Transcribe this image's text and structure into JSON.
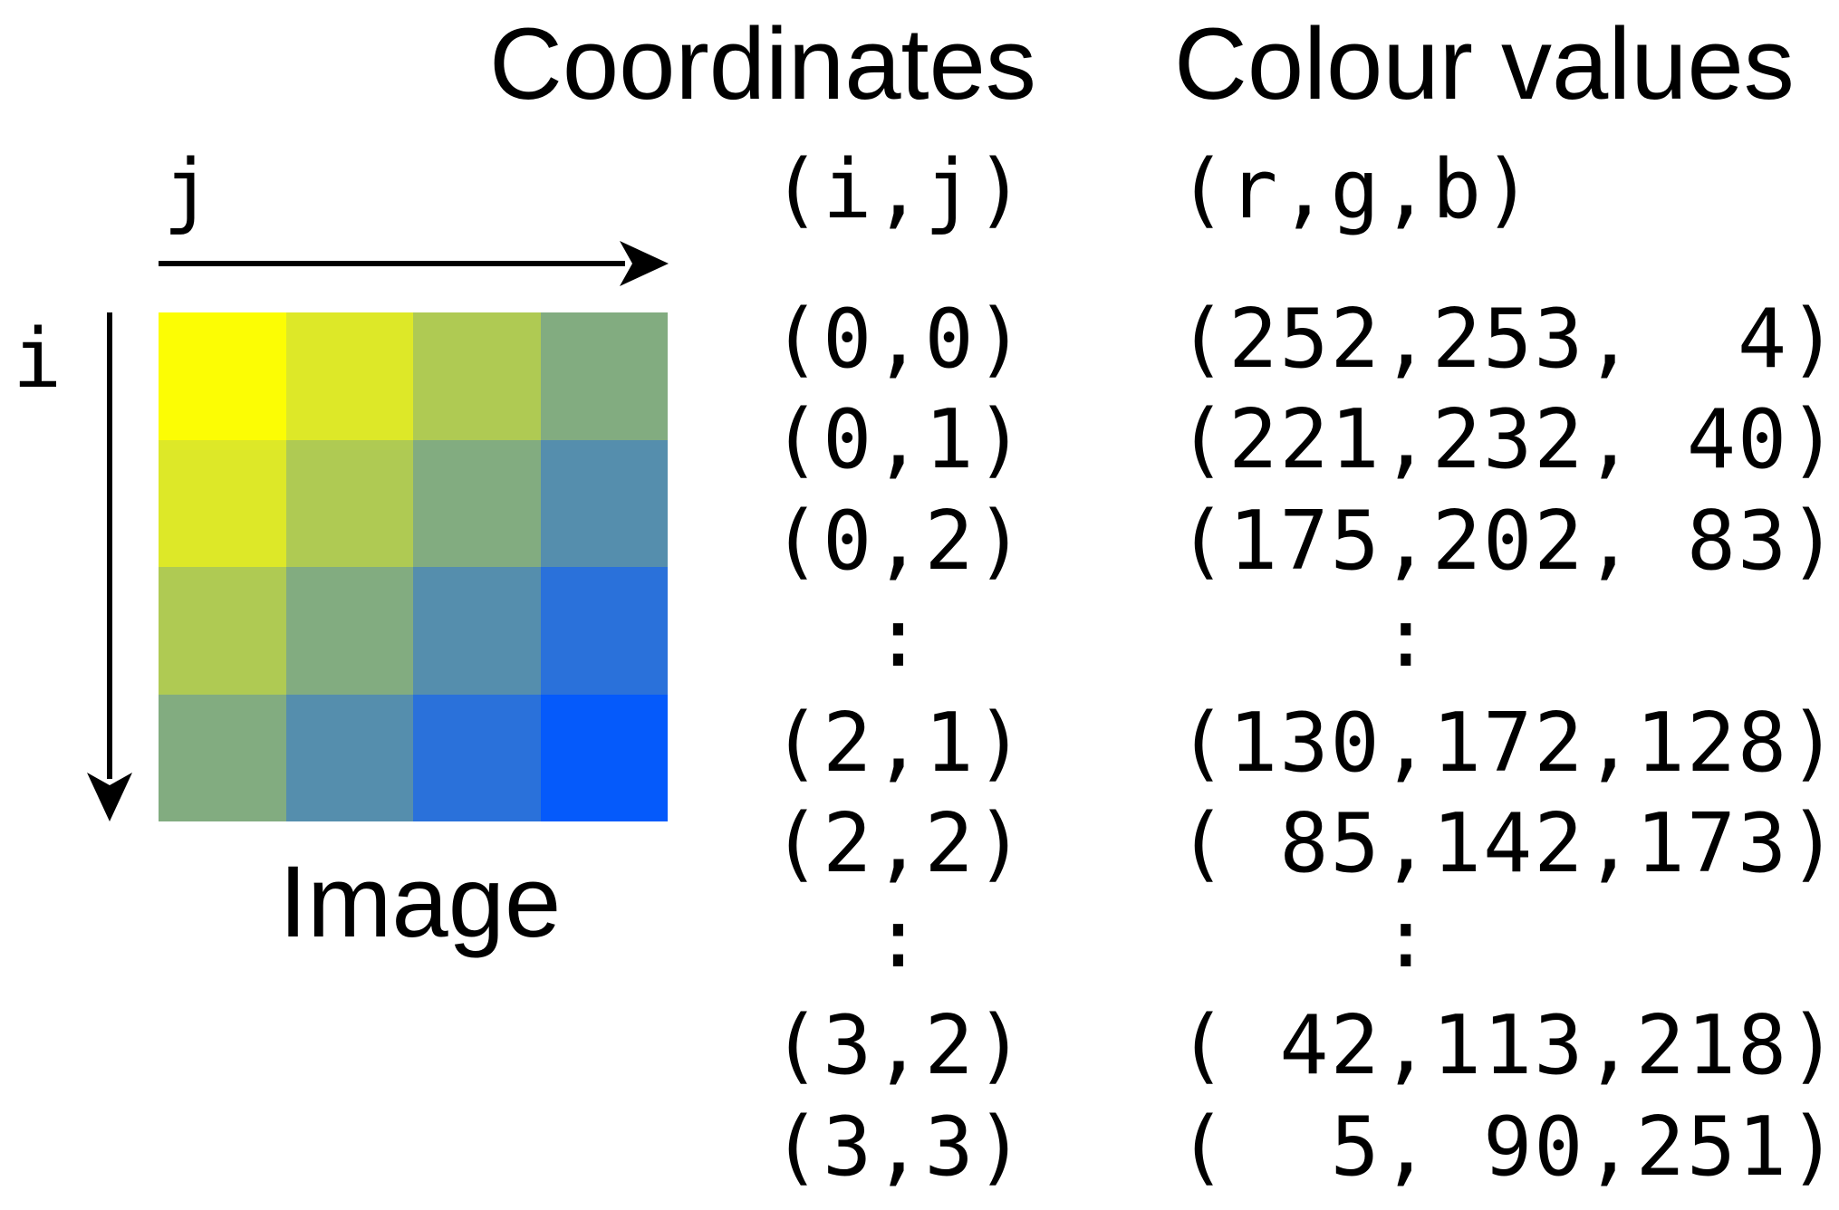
{
  "headings": {
    "coordinates": "Coordinates",
    "colour_values": "Colour values"
  },
  "axes": {
    "horizontal": "j",
    "vertical": "i"
  },
  "image_caption": "Image",
  "column_headers": {
    "coordinates": "(i,j)",
    "colours": "(r,g,b)"
  },
  "grid_colors": [
    [
      "#fcfd04",
      "#dde828",
      "#afca53",
      "#82ac80"
    ],
    [
      "#dde828",
      "#afca53",
      "#82ac80",
      "#558ead"
    ],
    [
      "#afca53",
      "#82ac80",
      "#558ead",
      "#2a71da"
    ],
    [
      "#82ac80",
      "#558ead",
      "#2a71da",
      "#055afb"
    ]
  ],
  "rows": [
    {
      "coord": "(0,0)",
      "colour": "(252,253,  4)"
    },
    {
      "coord": "(0,1)",
      "colour": "(221,232, 40)"
    },
    {
      "coord": "(0,2)",
      "colour": "(175,202, 83)"
    },
    {
      "coord": "  :",
      "colour": "    :"
    },
    {
      "coord": "(2,1)",
      "colour": "(130,172,128)"
    },
    {
      "coord": "(2,2)",
      "colour": "( 85,142,173)"
    },
    {
      "coord": "  :",
      "colour": "    :"
    },
    {
      "coord": "(3,2)",
      "colour": "( 42,113,218)"
    },
    {
      "coord": "(3,3)",
      "colour": "(  5, 90,251)"
    }
  ]
}
